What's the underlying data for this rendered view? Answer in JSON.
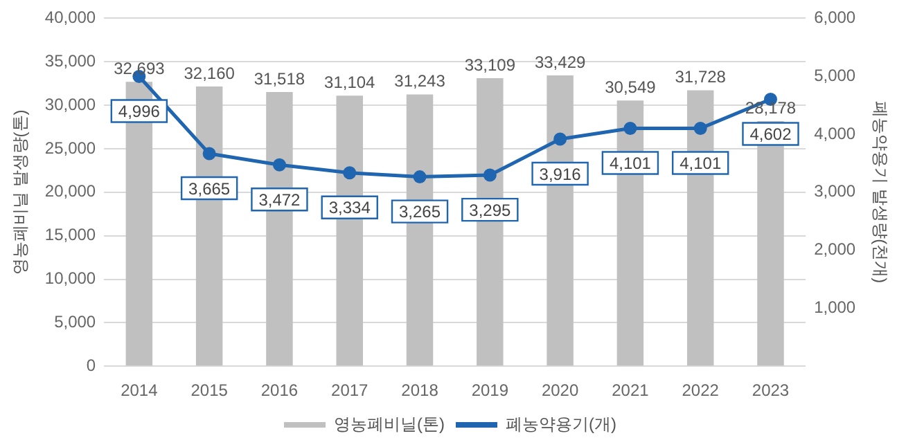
{
  "chart_data": {
    "type": "bar",
    "categories": [
      "2014",
      "2015",
      "2016",
      "2017",
      "2018",
      "2019",
      "2020",
      "2021",
      "2022",
      "2023"
    ],
    "ylabel": "영농폐비닐 발생량(톤)",
    "y2label": "폐농약용기 발생량(천개)",
    "series": [
      {
        "name": "영농폐비닐(톤)",
        "color": "#c0c0c0",
        "values": [
          32693,
          32160,
          31518,
          31104,
          31243,
          33109,
          33429,
          30549,
          31728,
          28178
        ],
        "value_labels": [
          "32,693",
          "32,160",
          "31,518",
          "31,104",
          "31,243",
          "33,109",
          "33,429",
          "30,549",
          "31,728",
          "28,178"
        ]
      },
      {
        "name": "폐농약용기(개)",
        "type": "line",
        "axis": "y2",
        "color": "#1f65b0",
        "marker": "circle",
        "values": [
          4996,
          3665,
          3472,
          3334,
          3265,
          3295,
          3916,
          4101,
          4101,
          4602
        ],
        "value_labels": [
          "4,996",
          "3,665",
          "3,472",
          "3,334",
          "3,265",
          "3,295",
          "3,916",
          "4,101",
          "4,101",
          "4,602"
        ]
      }
    ],
    "ylim": [
      0,
      40000
    ],
    "yticks": [
      {
        "value": 0,
        "label": "0"
      },
      {
        "value": 5000,
        "label": "5,000"
      },
      {
        "value": 10000,
        "label": "10,000"
      },
      {
        "value": 15000,
        "label": "15,000"
      },
      {
        "value": 20000,
        "label": "20,000"
      },
      {
        "value": 25000,
        "label": "25,000"
      },
      {
        "value": 30000,
        "label": "30,000"
      },
      {
        "value": 35000,
        "label": "35,000"
      },
      {
        "value": 40000,
        "label": "40,000"
      }
    ],
    "y2lim": [
      0,
      6000
    ],
    "y2ticks": [
      {
        "value": 1000,
        "label": "1,000"
      },
      {
        "value": 2000,
        "label": "2,000"
      },
      {
        "value": 3000,
        "label": "3,000"
      },
      {
        "value": 4000,
        "label": "4,000"
      },
      {
        "value": 5000,
        "label": "5,000"
      },
      {
        "value": 6000,
        "label": "6,000"
      }
    ],
    "grid": "y",
    "legend": "bottom"
  }
}
